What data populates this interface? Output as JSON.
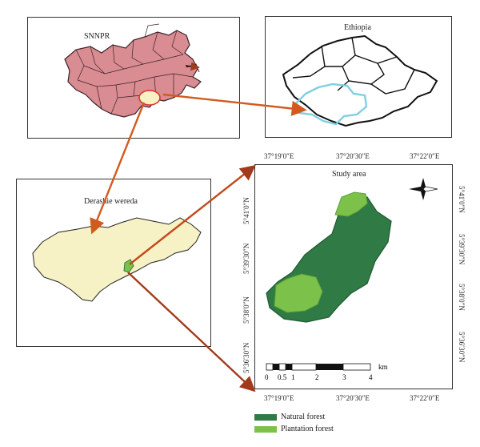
{
  "panels": {
    "snnpr": {
      "title": "SNNPR"
    },
    "ethiopia": {
      "title": "Ethiopia"
    },
    "derashie": {
      "title": "Derashie wereda"
    },
    "study": {
      "title": "Study area"
    }
  },
  "axes": {
    "top": [
      "37°19′0″E",
      "37°20′30″E",
      "37°22′0″E"
    ],
    "bottom": [
      "37°19′0″E",
      "37°20′30″E",
      "37°22′0″E"
    ],
    "left": [
      "5°41′0″N",
      "5°39′30″N",
      "5°38′0″N",
      "5°36′30″N"
    ],
    "right": [
      "5°41′0″N",
      "5°39′30″N",
      "5°38′0″N",
      "5°36′30″N"
    ]
  },
  "scale_bar": {
    "ticks": [
      "0",
      "0.5",
      "1",
      "2",
      "3",
      "4"
    ],
    "unit": "km"
  },
  "legend": [
    {
      "label": "Natural forest",
      "color": "#2f7a45"
    },
    {
      "label": "Plantation forest",
      "color": "#7cc24a"
    }
  ],
  "colors": {
    "snnpr_fill": "#d98c92",
    "ethiopia_outline": "#7fd0e0",
    "wereda_fill": "#f7f2c6",
    "arrow": "#d35a1e",
    "highlight": "#e0322b"
  },
  "icons": {
    "north_arrow": "compass-rose-icon"
  }
}
